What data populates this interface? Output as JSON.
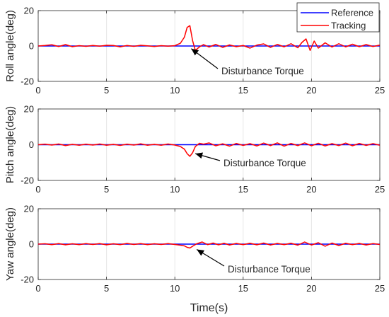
{
  "chart_data": [
    {
      "type": "line",
      "ylabel": "Roll angle(deg)",
      "xlim": [
        0,
        25
      ],
      "ylim": [
        -20,
        20
      ],
      "xticks": [
        0,
        5,
        10,
        15,
        20,
        25
      ],
      "yticks": [
        -20,
        0,
        20
      ],
      "grid": "vertical",
      "legend": "top-right",
      "annotation": {
        "text": "Disturbance Torque",
        "arrow_to": [
          11.2,
          -1.5
        ]
      },
      "series": [
        {
          "name": "Reference",
          "color": "#0000ff",
          "x": [
            0,
            25
          ],
          "y": [
            0,
            0
          ]
        },
        {
          "name": "Tracking",
          "color": "#ff0000",
          "x": [
            0,
            0.5,
            1.0,
            1.5,
            2.0,
            2.5,
            3.0,
            3.5,
            4.0,
            4.5,
            5.0,
            5.5,
            6.0,
            6.5,
            7.0,
            7.5,
            8.0,
            8.5,
            9.0,
            9.5,
            10.0,
            10.4,
            10.7,
            10.9,
            11.1,
            11.3,
            11.5,
            11.8,
            12.1,
            12.5,
            13.0,
            13.5,
            14.0,
            14.5,
            15.0,
            15.5,
            16.0,
            16.5,
            17.0,
            17.5,
            18.0,
            18.5,
            19.0,
            19.3,
            19.6,
            19.9,
            20.2,
            20.5,
            21.0,
            21.5,
            22.0,
            22.5,
            23.0,
            23.5,
            24.0,
            24.5,
            25.0
          ],
          "y": [
            0,
            0.3,
            0.7,
            -0.3,
            0.8,
            -0.4,
            0.2,
            -0.2,
            0.3,
            -0.1,
            0.4,
            0.3,
            -0.5,
            0.3,
            -0.2,
            0.4,
            0.1,
            -0.3,
            0.2,
            -0.1,
            0.2,
            1.5,
            5.0,
            10.5,
            11.5,
            3.0,
            -2.5,
            -0.5,
            0.8,
            -0.6,
            0.9,
            -0.8,
            0.6,
            -0.4,
            0.3,
            -1.2,
            0.5,
            1.2,
            -0.8,
            0.9,
            -0.5,
            1.3,
            -1.0,
            2.0,
            4.0,
            -2.5,
            2.8,
            -1.2,
            1.8,
            -0.6,
            1.3,
            -0.5,
            1.0,
            -0.4,
            0.8,
            -0.3,
            0.5
          ]
        }
      ]
    },
    {
      "type": "line",
      "ylabel": "Pitch angle(deg)",
      "xlim": [
        0,
        25
      ],
      "ylim": [
        -20,
        20
      ],
      "xticks": [
        0,
        5,
        10,
        15,
        20,
        25
      ],
      "yticks": [
        -20,
        0,
        20
      ],
      "grid": "vertical",
      "annotation": {
        "text": "Disturbance Torque",
        "arrow_to": [
          11.5,
          -5.0
        ]
      },
      "series": [
        {
          "name": "Reference",
          "color": "#0000ff",
          "x": [
            0,
            25
          ],
          "y": [
            0,
            0
          ]
        },
        {
          "name": "Tracking",
          "color": "#ff0000",
          "x": [
            0,
            0.5,
            1.0,
            1.5,
            2.0,
            2.5,
            3.0,
            3.5,
            4.0,
            4.5,
            5.0,
            5.5,
            6.0,
            6.5,
            7.0,
            7.5,
            8.0,
            8.5,
            9.0,
            9.5,
            10.0,
            10.4,
            10.7,
            10.9,
            11.1,
            11.3,
            11.5,
            11.8,
            12.1,
            12.5,
            13.0,
            13.5,
            14.0,
            14.5,
            15.0,
            15.5,
            16.0,
            16.5,
            17.0,
            17.5,
            18.0,
            18.5,
            19.0,
            19.5,
            20.0,
            20.5,
            21.0,
            21.5,
            22.0,
            22.5,
            23.0,
            23.5,
            24.0,
            24.5,
            25.0
          ],
          "y": [
            0,
            0.3,
            -0.2,
            0.4,
            -0.5,
            0.2,
            -0.3,
            0.3,
            -0.2,
            0.4,
            -0.3,
            0.2,
            -0.4,
            0.3,
            -0.2,
            0.5,
            -0.3,
            0.2,
            -0.3,
            0.4,
            -0.2,
            -1.0,
            -2.5,
            -5.0,
            -6.5,
            -4.5,
            -1.0,
            0.8,
            0.3,
            1.0,
            -0.6,
            0.5,
            -0.8,
            0.7,
            -0.4,
            0.6,
            -0.7,
            0.9,
            -0.5,
            1.0,
            -0.8,
            0.7,
            -0.5,
            1.0,
            -0.6,
            0.8,
            -0.7,
            0.6,
            -0.5,
            0.9,
            -0.6,
            0.7,
            -0.4,
            0.6,
            -0.3
          ]
        }
      ]
    },
    {
      "type": "line",
      "ylabel": "Yaw angle(deg)",
      "xlabel": "Time(s)",
      "xlim": [
        0,
        25
      ],
      "ylim": [
        -20,
        20
      ],
      "xticks": [
        0,
        5,
        10,
        15,
        20,
        25
      ],
      "yticks": [
        -20,
        0,
        20
      ],
      "grid": "vertical",
      "annotation": {
        "text": "Disturbance Torque",
        "arrow_to": [
          11.6,
          -3.0
        ]
      },
      "series": [
        {
          "name": "Reference",
          "color": "#0000ff",
          "x": [
            0,
            25
          ],
          "y": [
            0,
            0
          ]
        },
        {
          "name": "Tracking",
          "color": "#ff0000",
          "x": [
            0,
            0.5,
            1.0,
            1.5,
            2.0,
            2.5,
            3.0,
            3.5,
            4.0,
            4.5,
            5.0,
            5.5,
            6.0,
            6.5,
            7.0,
            7.5,
            8.0,
            8.5,
            9.0,
            9.5,
            10.0,
            10.4,
            10.7,
            10.9,
            11.1,
            11.3,
            11.6,
            12.0,
            12.4,
            12.8,
            13.2,
            13.6,
            14.0,
            14.5,
            15.0,
            15.5,
            16.0,
            16.5,
            17.0,
            17.5,
            18.0,
            18.5,
            19.0,
            19.5,
            20.0,
            20.5,
            21.0,
            21.5,
            22.0,
            22.5,
            23.0,
            23.5,
            24.0,
            24.5,
            25.0
          ],
          "y": [
            0,
            0.2,
            -0.3,
            0.3,
            -0.4,
            0.2,
            -0.3,
            0.3,
            -0.2,
            0.3,
            -0.4,
            0.2,
            -0.3,
            0.4,
            -0.2,
            0.3,
            -0.3,
            0.2,
            -0.2,
            0.3,
            -0.2,
            -0.6,
            -1.0,
            -1.8,
            -2.2,
            -1.2,
            0.2,
            1.2,
            -0.3,
            0.6,
            -0.4,
            0.5,
            -0.5,
            0.4,
            -0.3,
            0.5,
            -0.4,
            0.6,
            -0.5,
            0.4,
            -0.3,
            0.5,
            -0.6,
            1.2,
            -0.5,
            0.8,
            -1.2,
            0.6,
            -0.8,
            0.5,
            -0.3,
            0.4,
            -0.5,
            0.3,
            -0.2
          ]
        }
      ]
    }
  ]
}
